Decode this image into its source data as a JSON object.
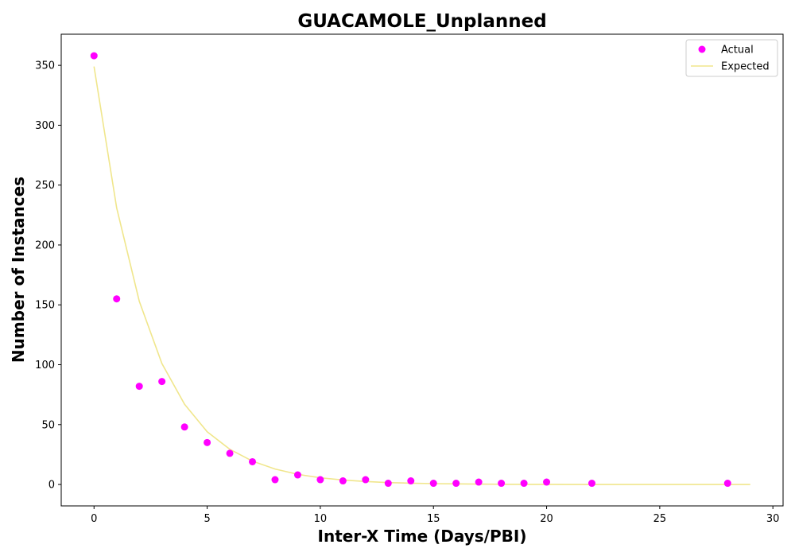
{
  "chart_data": {
    "type": "scatter",
    "title": "GUACAMOLE_Unplanned",
    "xlabel": "Inter-X Time (Days/PBI)",
    "ylabel": "Number of Instances",
    "xlim": [
      -1.45,
      30.45
    ],
    "ylim": [
      -17.9,
      376
    ],
    "xticks": [
      0,
      5,
      10,
      15,
      20,
      25,
      30
    ],
    "yticks": [
      0,
      50,
      100,
      150,
      200,
      250,
      300,
      350
    ],
    "grid": false,
    "legend": "top-right",
    "series": [
      {
        "name": "Actual",
        "kind": "scatter",
        "color": "#ff00ff",
        "points": [
          [
            0,
            358
          ],
          [
            1,
            155
          ],
          [
            2,
            82
          ],
          [
            3,
            86
          ],
          [
            4,
            48
          ],
          [
            5,
            35
          ],
          [
            6,
            26
          ],
          [
            7,
            19
          ],
          [
            8,
            4
          ],
          [
            9,
            8
          ],
          [
            10,
            4
          ],
          [
            11,
            3
          ],
          [
            12,
            4
          ],
          [
            13,
            1
          ],
          [
            14,
            3
          ],
          [
            15,
            1
          ],
          [
            16,
            1
          ],
          [
            17,
            2
          ],
          [
            18,
            1
          ],
          [
            19,
            1
          ],
          [
            20,
            2
          ],
          [
            22,
            1
          ],
          [
            28,
            1
          ]
        ]
      },
      {
        "name": "Expected",
        "kind": "line",
        "color": "#f0e68c",
        "points": [
          [
            0,
            349
          ],
          [
            1,
            231
          ],
          [
            2,
            153
          ],
          [
            3,
            101
          ],
          [
            4,
            67
          ],
          [
            5,
            44
          ],
          [
            6,
            29.4
          ],
          [
            7,
            19.5
          ],
          [
            8,
            12.9
          ],
          [
            9,
            8.5
          ],
          [
            10,
            5.6
          ],
          [
            11,
            3.7
          ],
          [
            12,
            2.5
          ],
          [
            13,
            1.6
          ],
          [
            14,
            1.1
          ],
          [
            15,
            0.7
          ],
          [
            16,
            0.5
          ],
          [
            17,
            0.3
          ],
          [
            18,
            0.2
          ],
          [
            19,
            0.1
          ],
          [
            20,
            0.1
          ],
          [
            21,
            0
          ],
          [
            22,
            0
          ],
          [
            23,
            0
          ],
          [
            24,
            0
          ],
          [
            25,
            0
          ],
          [
            26,
            0
          ],
          [
            27,
            0
          ],
          [
            28,
            0
          ],
          [
            29,
            0
          ]
        ]
      }
    ]
  }
}
